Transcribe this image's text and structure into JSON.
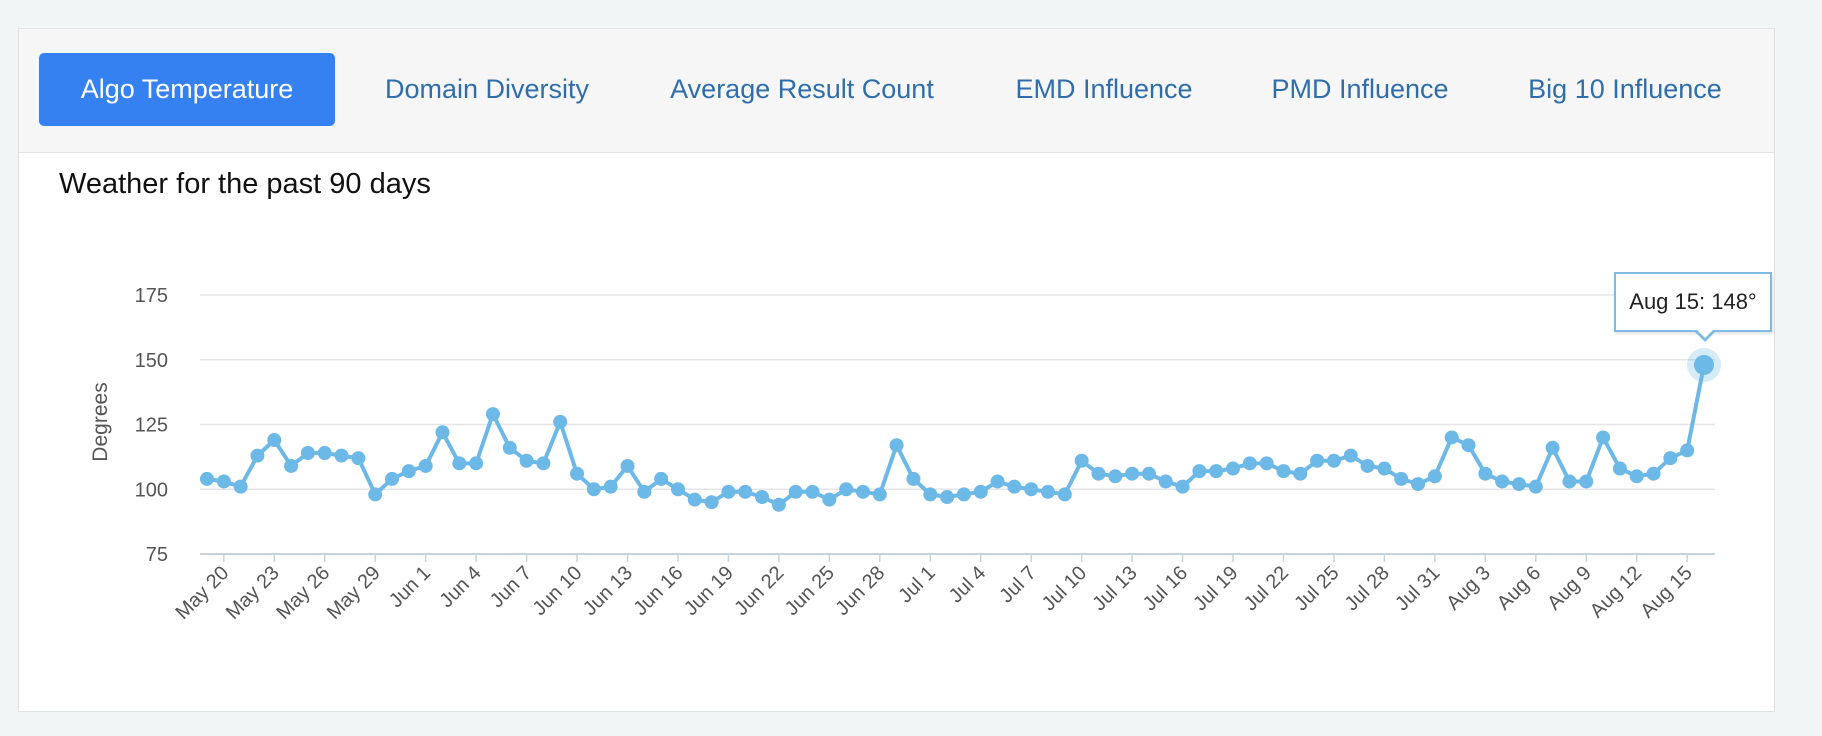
{
  "tabs": [
    {
      "label": "Algo Temperature",
      "active": true
    },
    {
      "label": "Domain Diversity",
      "active": false
    },
    {
      "label": "Average Result Count",
      "active": false
    },
    {
      "label": "EMD Influence",
      "active": false
    },
    {
      "label": "PMD Influence",
      "active": false
    },
    {
      "label": "Big 10 Influence",
      "active": false
    }
  ],
  "colors": {
    "accent": "#3681f1",
    "series": "#6cb8e6"
  },
  "tooltip": {
    "text": "Aug 15: 148°"
  },
  "chart_data": {
    "type": "line",
    "title": "Weather for the past 90 days",
    "ylabel": "Degrees",
    "xlabel": "",
    "ylim": [
      75,
      175
    ],
    "yticks": [
      75,
      100,
      125,
      150,
      175
    ],
    "grid": true,
    "x_tick_labels": [
      "May 20",
      "May 23",
      "May 26",
      "May 29",
      "Jun 1",
      "Jun 4",
      "Jun 7",
      "Jun 10",
      "Jun 13",
      "Jun 16",
      "Jun 19",
      "Jun 22",
      "Jun 25",
      "Jun 28",
      "Jul 1",
      "Jul 4",
      "Jul 7",
      "Jul 10",
      "Jul 13",
      "Jul 16",
      "Jul 19",
      "Jul 22",
      "Jul 25",
      "Jul 28",
      "Jul 31",
      "Aug 3",
      "Aug 6",
      "Aug 9",
      "Aug 12",
      "Aug 15"
    ],
    "series": [
      {
        "values": [
          104,
          103,
          101,
          113,
          119,
          109,
          114,
          114,
          113,
          112,
          98,
          104,
          107,
          109,
          122,
          110,
          110,
          129,
          116,
          111,
          110,
          126,
          106,
          100,
          101,
          109,
          99,
          104,
          100,
          96,
          95,
          99,
          99,
          97,
          94,
          99,
          99,
          96,
          100,
          99,
          98,
          117,
          104,
          98,
          97,
          98,
          99,
          103,
          101,
          100,
          99,
          98,
          111,
          106,
          105,
          106,
          106,
          103,
          101,
          107,
          107,
          108,
          110,
          110,
          107,
          106,
          111,
          111,
          113,
          109,
          108,
          104,
          102,
          105,
          120,
          117,
          106,
          103,
          102,
          101,
          116,
          103,
          103,
          120,
          108,
          105,
          106,
          112,
          115,
          148
        ]
      }
    ],
    "highlight": {
      "label": "Aug 15",
      "value": 148
    }
  }
}
